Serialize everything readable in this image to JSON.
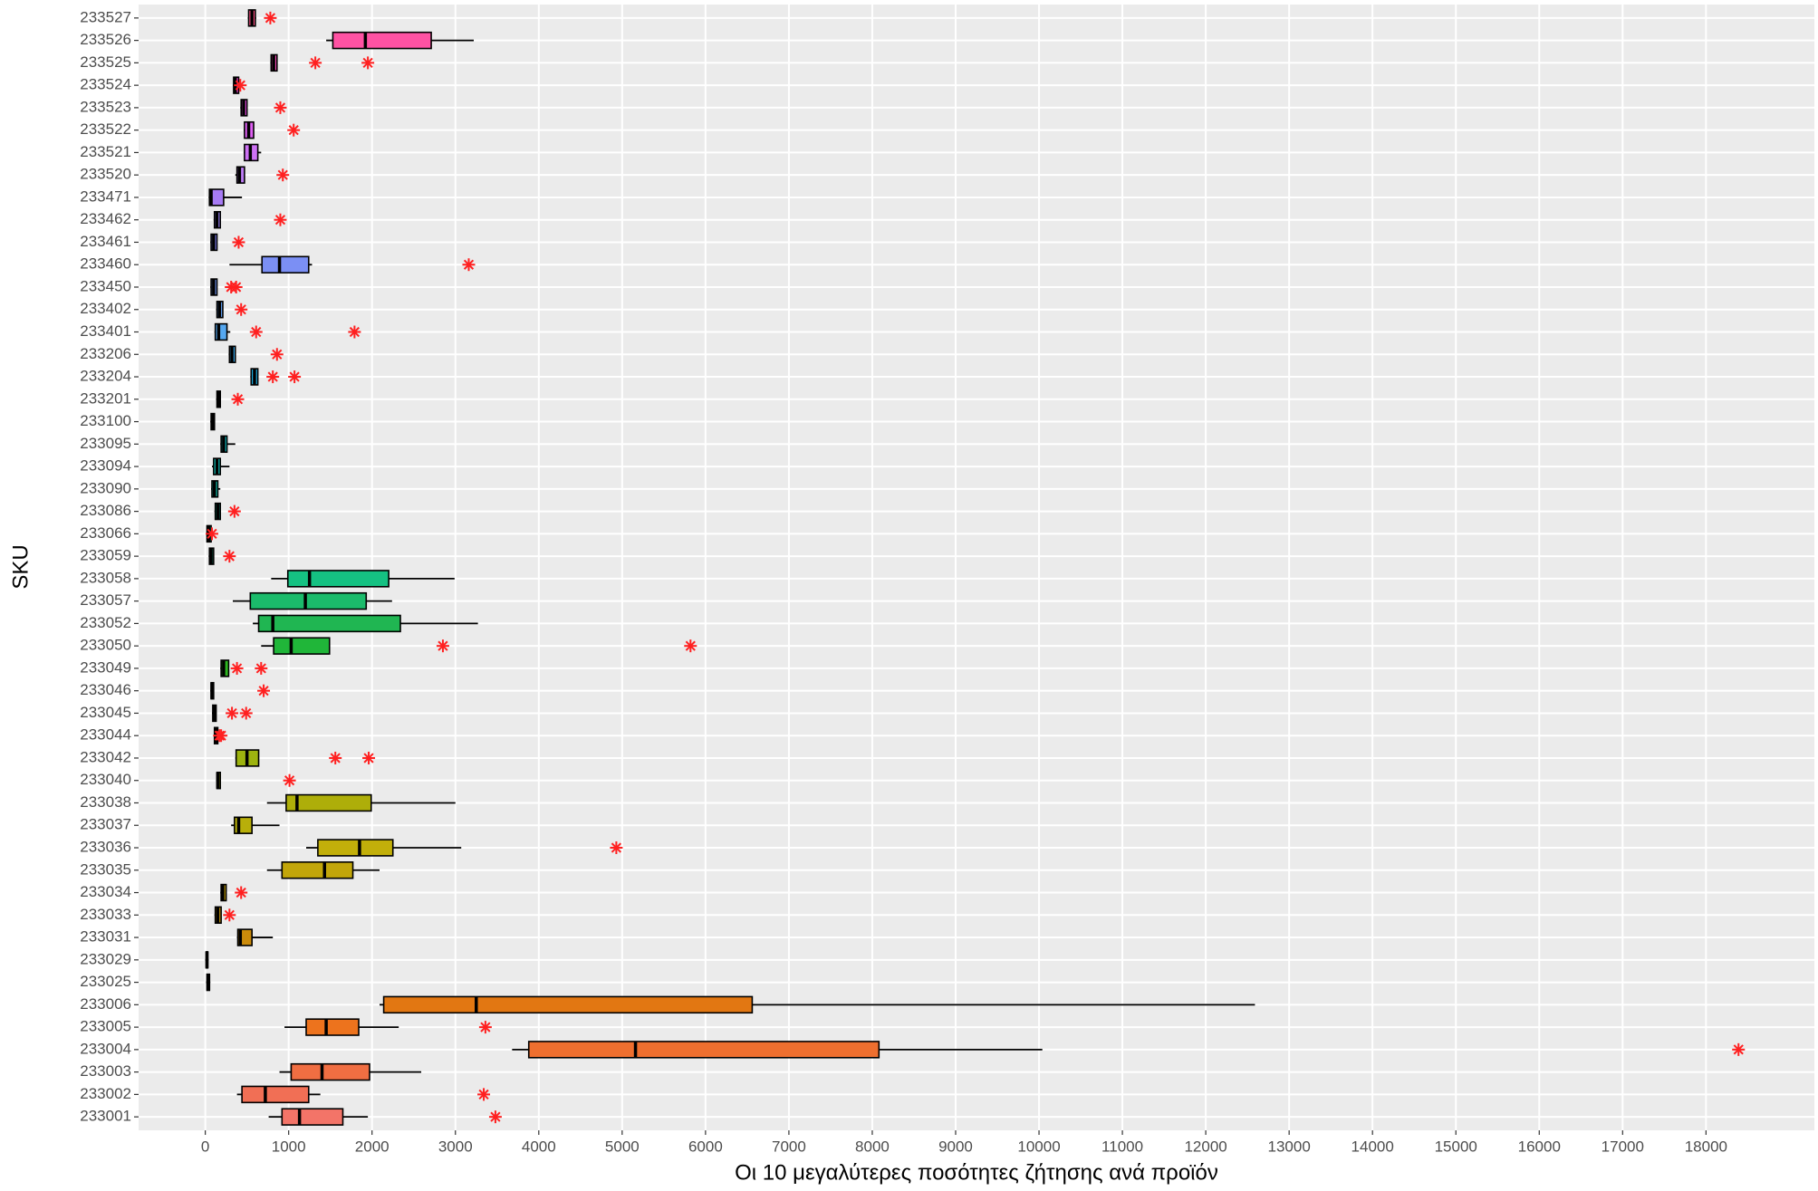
{
  "chart_data": {
    "type": "boxplot",
    "x_label": "Οι 10 μεγαλύτερες ποσότητες ζήτησης ανά προϊόν",
    "y_label": "SKU",
    "categories": [
      "233001",
      "233002",
      "233003",
      "233004",
      "233005",
      "233006",
      "233025",
      "233029",
      "233031",
      "233033",
      "233034",
      "233035",
      "233036",
      "233037",
      "233038",
      "233040",
      "233042",
      "233044",
      "233045",
      "233046",
      "233049",
      "233050",
      "233052",
      "233057",
      "233058",
      "233059",
      "233066",
      "233086",
      "233090",
      "233094",
      "233095",
      "233100",
      "233201",
      "233204",
      "233206",
      "233401",
      "233402",
      "233450",
      "233460",
      "233461",
      "233462",
      "233471",
      "233520",
      "233521",
      "233522",
      "233523",
      "233524",
      "233525",
      "233526",
      "233527"
    ],
    "boxes": [
      {
        "min": 760,
        "q1": 920,
        "median": 1130,
        "q3": 1650,
        "max": 1950,
        "outliers": [
          3480
        ]
      },
      {
        "min": 380,
        "q1": 440,
        "median": 720,
        "q3": 1240,
        "max": 1380,
        "outliers": [
          3340
        ]
      },
      {
        "min": 890,
        "q1": 1030,
        "median": 1400,
        "q3": 1970,
        "max": 2590,
        "outliers": []
      },
      {
        "min": 3680,
        "q1": 3880,
        "median": 5160,
        "q3": 8080,
        "max": 10040,
        "outliers": [
          18390
        ]
      },
      {
        "min": 950,
        "q1": 1210,
        "median": 1450,
        "q3": 1840,
        "max": 2320,
        "outliers": [
          3360
        ]
      },
      {
        "min": 2090,
        "q1": 2140,
        "median": 3250,
        "q3": 6560,
        "max": 12590,
        "outliers": []
      },
      {
        "min": 10,
        "q1": 20,
        "median": 40,
        "q3": 50,
        "max": 60,
        "outliers": []
      },
      {
        "min": 0,
        "q1": 10,
        "median": 20,
        "q3": 30,
        "max": 40,
        "outliers": []
      },
      {
        "min": 380,
        "q1": 390,
        "median": 420,
        "q3": 560,
        "max": 810,
        "outliers": []
      },
      {
        "min": 110,
        "q1": 120,
        "median": 150,
        "q3": 190,
        "max": 190,
        "outliers": [
          290
        ]
      },
      {
        "min": 180,
        "q1": 190,
        "median": 210,
        "q3": 250,
        "max": 250,
        "outliers": [
          430
        ]
      },
      {
        "min": 740,
        "q1": 920,
        "median": 1430,
        "q3": 1770,
        "max": 2090,
        "outliers": []
      },
      {
        "min": 1210,
        "q1": 1350,
        "median": 1850,
        "q3": 2250,
        "max": 3070,
        "outliers": [
          4930
        ]
      },
      {
        "min": 310,
        "q1": 350,
        "median": 400,
        "q3": 560,
        "max": 890,
        "outliers": []
      },
      {
        "min": 740,
        "q1": 970,
        "median": 1100,
        "q3": 1990,
        "max": 3000,
        "outliers": []
      },
      {
        "min": 130,
        "q1": 140,
        "median": 150,
        "q3": 180,
        "max": 180,
        "outliers": [
          1010
        ]
      },
      {
        "min": 360,
        "q1": 370,
        "median": 500,
        "q3": 640,
        "max": 640,
        "outliers": [
          1560,
          1960
        ]
      },
      {
        "min": 100,
        "q1": 110,
        "median": 130,
        "q3": 150,
        "max": 150,
        "outliers": [
          170,
          190
        ]
      },
      {
        "min": 80,
        "q1": 90,
        "median": 110,
        "q3": 130,
        "max": 130,
        "outliers": [
          320,
          490
        ]
      },
      {
        "min": 60,
        "q1": 70,
        "median": 80,
        "q3": 100,
        "max": 100,
        "outliers": [
          700
        ]
      },
      {
        "min": 180,
        "q1": 190,
        "median": 220,
        "q3": 280,
        "max": 280,
        "outliers": [
          380,
          670
        ]
      },
      {
        "min": 670,
        "q1": 820,
        "median": 1030,
        "q3": 1490,
        "max": 1490,
        "outliers": [
          2850,
          5820
        ]
      },
      {
        "min": 570,
        "q1": 640,
        "median": 810,
        "q3": 2340,
        "max": 3270,
        "outliers": []
      },
      {
        "min": 330,
        "q1": 540,
        "median": 1200,
        "q3": 1930,
        "max": 2240,
        "outliers": []
      },
      {
        "min": 790,
        "q1": 990,
        "median": 1250,
        "q3": 2200,
        "max": 2990,
        "outliers": []
      },
      {
        "min": 40,
        "q1": 50,
        "median": 70,
        "q3": 100,
        "max": 100,
        "outliers": [
          290
        ]
      },
      {
        "min": 10,
        "q1": 20,
        "median": 40,
        "q3": 70,
        "max": 70,
        "outliers": [
          80
        ]
      },
      {
        "min": 110,
        "q1": 120,
        "median": 150,
        "q3": 180,
        "max": 180,
        "outliers": [
          350
        ]
      },
      {
        "min": 70,
        "q1": 80,
        "median": 110,
        "q3": 150,
        "max": 180,
        "outliers": []
      },
      {
        "min": 80,
        "q1": 100,
        "median": 140,
        "q3": 180,
        "max": 290,
        "outliers": []
      },
      {
        "min": 180,
        "q1": 190,
        "median": 220,
        "q3": 260,
        "max": 360,
        "outliers": []
      },
      {
        "min": 60,
        "q1": 70,
        "median": 90,
        "q3": 110,
        "max": 110,
        "outliers": []
      },
      {
        "min": 130,
        "q1": 140,
        "median": 160,
        "q3": 180,
        "max": 180,
        "outliers": [
          390
        ]
      },
      {
        "min": 540,
        "q1": 550,
        "median": 590,
        "q3": 630,
        "max": 630,
        "outliers": [
          810,
          1070
        ]
      },
      {
        "min": 280,
        "q1": 290,
        "median": 320,
        "q3": 360,
        "max": 360,
        "outliers": [
          860
        ]
      },
      {
        "min": 110,
        "q1": 120,
        "median": 160,
        "q3": 260,
        "max": 300,
        "outliers": [
          610,
          1790
        ]
      },
      {
        "min": 130,
        "q1": 140,
        "median": 170,
        "q3": 210,
        "max": 210,
        "outliers": [
          430
        ]
      },
      {
        "min": 60,
        "q1": 70,
        "median": 100,
        "q3": 140,
        "max": 140,
        "outliers": [
          310,
          370
        ]
      },
      {
        "min": 290,
        "q1": 680,
        "median": 890,
        "q3": 1240,
        "max": 1280,
        "outliers": [
          3160
        ]
      },
      {
        "min": 60,
        "q1": 70,
        "median": 100,
        "q3": 140,
        "max": 140,
        "outliers": [
          400
        ]
      },
      {
        "min": 100,
        "q1": 110,
        "median": 140,
        "q3": 180,
        "max": 180,
        "outliers": [
          900
        ]
      },
      {
        "min": 40,
        "q1": 50,
        "median": 70,
        "q3": 220,
        "max": 440,
        "outliers": []
      },
      {
        "min": 360,
        "q1": 380,
        "median": 410,
        "q3": 470,
        "max": 470,
        "outliers": [
          930
        ]
      },
      {
        "min": 460,
        "q1": 470,
        "median": 540,
        "q3": 630,
        "max": 670,
        "outliers": []
      },
      {
        "min": 460,
        "q1": 470,
        "median": 520,
        "q3": 580,
        "max": 580,
        "outliers": [
          1060
        ]
      },
      {
        "min": 420,
        "q1": 430,
        "median": 460,
        "q3": 500,
        "max": 500,
        "outliers": [
          900
        ]
      },
      {
        "min": 330,
        "q1": 340,
        "median": 360,
        "q3": 400,
        "max": 400,
        "outliers": [
          420
        ]
      },
      {
        "min": 780,
        "q1": 790,
        "median": 820,
        "q3": 860,
        "max": 860,
        "outliers": [
          1320,
          1950
        ]
      },
      {
        "min": 1450,
        "q1": 1530,
        "median": 1920,
        "q3": 2710,
        "max": 3220,
        "outliers": []
      },
      {
        "min": 510,
        "q1": 520,
        "median": 560,
        "q3": 600,
        "max": 610,
        "outliers": [
          780
        ]
      }
    ],
    "colors": [
      "hsl(5,85%,68%)",
      "hsl(10,85%,64%)",
      "hsl(15,85%,60%)",
      "hsl(20,85%,56%)",
      "hsl(25,85%,52%)",
      "hsl(29,85%,48%)",
      "hsl(33,85%,48%)",
      "hsl(37,85%,46%)",
      "hsl(40,90%,42%)",
      "hsl(44,90%,42%)",
      "hsl(48,90%,40%)",
      "hsl(51,90%,40%)",
      "hsl(54,90%,40%)",
      "hsl(57,90%,38%)",
      "hsl(60,90%,36%)",
      "hsl(63,90%,36%)",
      "hsl(68,85%,38%)",
      "hsl(75,80%,40%)",
      "hsl(85,80%,40%)",
      "hsl(100,75%,40%)",
      "hsl(115,70%,42%)",
      "hsl(130,70%,42%)",
      "hsl(140,70%,42%)",
      "hsl(150,75%,42%)",
      "hsl(158,80%,42%)",
      "hsl(163,85%,42%)",
      "hsl(167,85%,42%)",
      "hsl(170,85%,42%)",
      "hsl(173,85%,42%)",
      "hsl(177,85%,42%)",
      "hsl(181,85%,42%)",
      "hsl(185,85%,45%)",
      "hsl(190,85%,48%)",
      "hsl(196,85%,52%)",
      "hsl(202,85%,58%)",
      "hsl(208,85%,64%)",
      "hsl(214,85%,66%)",
      "hsl(222,85%,70%)",
      "hsl(230,85%,72%)",
      "hsl(240,85%,74%)",
      "hsl(252,85%,74%)",
      "hsl(262,85%,72%)",
      "hsl(272,85%,72%)",
      "hsl(282,85%,70%)",
      "hsl(292,85%,66%)",
      "hsl(302,85%,62%)",
      "hsl(312,90%,62%)",
      "hsl(322,95%,64%)",
      "hsl(332,100%,66%)",
      "hsl(342,100%,66%)"
    ],
    "outlier_color": "#ff2020",
    "xlim": [
      -800,
      19300
    ],
    "xticks": [
      0,
      1000,
      2000,
      3000,
      4000,
      5000,
      6000,
      7000,
      8000,
      9000,
      10000,
      11000,
      12000,
      13000,
      14000,
      15000,
      16000,
      17000,
      18000
    ],
    "grid": true
  }
}
